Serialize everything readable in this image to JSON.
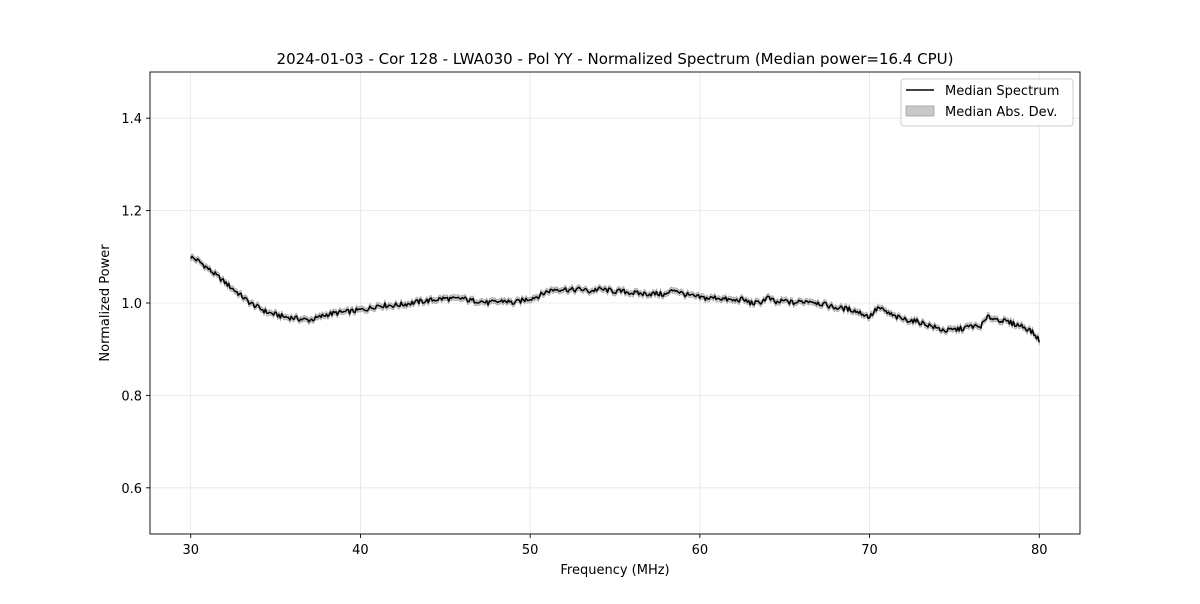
{
  "chart_data": {
    "type": "line",
    "title": "2024-01-03 - Cor 128 - LWA030 - Pol YY - Normalized Spectrum (Median power=16.4 CPU)",
    "xlabel": "Frequency (MHz)",
    "ylabel": "Normalized Power",
    "xlim": [
      27.6,
      82.4
    ],
    "ylim": [
      0.5,
      1.5
    ],
    "xticks": [
      30,
      40,
      50,
      60,
      70,
      80
    ],
    "xtick_labels": [
      "30",
      "40",
      "50",
      "60",
      "70",
      "80"
    ],
    "yticks": [
      0.6,
      0.8,
      1.0,
      1.2,
      1.4
    ],
    "ytick_labels": [
      "0.6",
      "0.8",
      "1.0",
      "1.2",
      "1.4"
    ],
    "grid": true,
    "legend_position": "top-right",
    "colors": {
      "line": "#000000",
      "band": "#bfbfbf",
      "grid": "#e6e6e6"
    },
    "series": [
      {
        "name": "Median Spectrum",
        "x": [
          30.0,
          30.5,
          31.0,
          31.5,
          32.0,
          32.5,
          33.0,
          33.5,
          34.0,
          34.5,
          35.0,
          35.5,
          36.0,
          36.5,
          37.0,
          37.5,
          38.0,
          38.5,
          39.0,
          39.5,
          40.0,
          40.5,
          41.0,
          41.5,
          42.0,
          42.5,
          43.0,
          43.5,
          44.0,
          44.5,
          45.0,
          45.5,
          46.0,
          46.5,
          47.0,
          47.5,
          48.0,
          48.5,
          49.0,
          49.5,
          50.0,
          50.5,
          51.0,
          51.5,
          52.0,
          52.5,
          53.0,
          53.5,
          54.0,
          54.5,
          55.0,
          55.5,
          56.0,
          56.5,
          57.0,
          57.5,
          58.0,
          58.5,
          59.0,
          59.5,
          60.0,
          60.5,
          61.0,
          61.5,
          62.0,
          62.5,
          63.0,
          63.5,
          64.0,
          64.5,
          65.0,
          65.5,
          66.0,
          66.5,
          67.0,
          67.5,
          68.0,
          68.5,
          69.0,
          69.5,
          70.0,
          70.5,
          71.0,
          71.5,
          72.0,
          72.5,
          73.0,
          73.5,
          74.0,
          74.5,
          75.0,
          75.5,
          76.0,
          76.5,
          77.0,
          77.5,
          78.0,
          78.5,
          79.0,
          79.5,
          80.0
        ],
        "y": [
          1.1,
          1.09,
          1.075,
          1.06,
          1.045,
          1.03,
          1.015,
          1.0,
          0.99,
          0.98,
          0.975,
          0.97,
          0.968,
          0.965,
          0.963,
          0.968,
          0.975,
          0.978,
          0.98,
          0.982,
          0.985,
          0.988,
          0.995,
          0.995,
          0.995,
          0.997,
          1.0,
          1.003,
          1.005,
          1.008,
          1.01,
          1.008,
          1.01,
          1.005,
          1.005,
          1.0,
          1.002,
          1.005,
          1.0,
          1.005,
          1.01,
          1.015,
          1.025,
          1.03,
          1.03,
          1.028,
          1.03,
          1.025,
          1.03,
          1.028,
          1.025,
          1.025,
          1.022,
          1.02,
          1.02,
          1.02,
          1.018,
          1.03,
          1.02,
          1.015,
          1.012,
          1.01,
          1.012,
          1.008,
          1.005,
          1.008,
          1.0,
          1.0,
          1.012,
          1.0,
          1.005,
          1.0,
          1.003,
          1.005,
          1.0,
          0.995,
          0.99,
          0.988,
          0.985,
          0.978,
          0.97,
          0.99,
          0.98,
          0.97,
          0.965,
          0.962,
          0.958,
          0.952,
          0.945,
          0.94,
          0.942,
          0.945,
          0.95,
          0.948,
          0.97,
          0.965,
          0.96,
          0.955,
          0.95,
          0.94,
          0.92
        ]
      },
      {
        "name": "Median Abs. Dev.",
        "mad": 0.006
      }
    ]
  }
}
